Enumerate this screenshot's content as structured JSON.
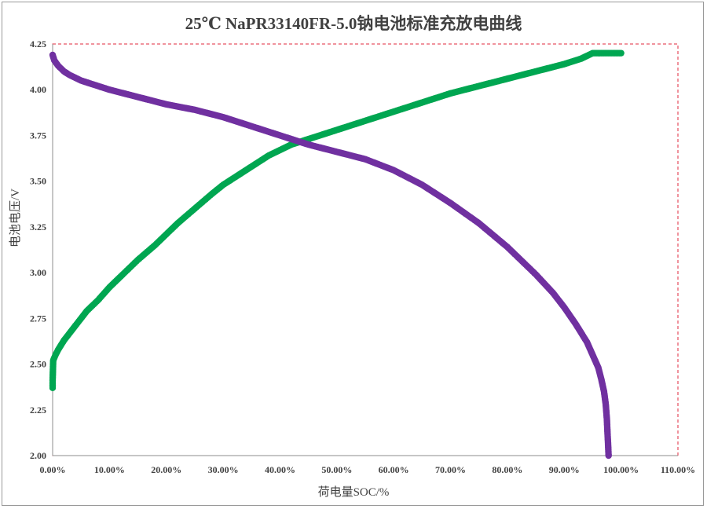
{
  "chart_data": {
    "type": "scatter",
    "title": "25℃ NaPR33140FR-5.0钠电池标准充放电曲线",
    "xlabel": "荷电量SOC/%",
    "ylabel": "电池电压/V",
    "xlim": [
      0,
      110
    ],
    "ylim": [
      2.0,
      4.25
    ],
    "x_ticks": [
      "0.00%",
      "10.00%",
      "20.00%",
      "30.00%",
      "40.00%",
      "50.00%",
      "60.00%",
      "70.00%",
      "80.00%",
      "90.00%",
      "100.00%",
      "110.00%"
    ],
    "y_ticks": [
      "2.00",
      "2.25",
      "2.50",
      "2.75",
      "3.00",
      "3.25",
      "3.50",
      "3.75",
      "4.00",
      "4.25"
    ],
    "grid": false,
    "legend": "none",
    "series": [
      {
        "color": "#00a651",
        "x": [
          0.0,
          0.0,
          0.1,
          0.5,
          1,
          2,
          3,
          4,
          5,
          6,
          7,
          8,
          10,
          12,
          15,
          18,
          20,
          22,
          25,
          28,
          30,
          33,
          35,
          38,
          40,
          42,
          45,
          48,
          50,
          55,
          60,
          65,
          70,
          75,
          80,
          85,
          90,
          93,
          95,
          97,
          100
        ],
        "y": [
          2.37,
          2.41,
          2.52,
          2.55,
          2.58,
          2.63,
          2.67,
          2.71,
          2.75,
          2.79,
          2.82,
          2.85,
          2.92,
          2.98,
          3.07,
          3.15,
          3.21,
          3.27,
          3.35,
          3.43,
          3.48,
          3.54,
          3.58,
          3.64,
          3.67,
          3.7,
          3.73,
          3.76,
          3.78,
          3.83,
          3.88,
          3.93,
          3.98,
          4.02,
          4.06,
          4.1,
          4.14,
          4.17,
          4.2,
          4.2,
          4.2
        ]
      },
      {
        "color": "#7030a0",
        "x": [
          0.0,
          0.3,
          1,
          2,
          3,
          5,
          8,
          10,
          15,
          20,
          25,
          30,
          35,
          40,
          45,
          50,
          55,
          60,
          65,
          70,
          75,
          80,
          85,
          88,
          90,
          92,
          94,
          95,
          96,
          96.5,
          97,
          97.3,
          97.5,
          97.6,
          97.7,
          97.8
        ],
        "y": [
          4.19,
          4.16,
          4.13,
          4.1,
          4.08,
          4.05,
          4.02,
          4.0,
          3.96,
          3.92,
          3.89,
          3.85,
          3.8,
          3.75,
          3.7,
          3.66,
          3.62,
          3.56,
          3.48,
          3.38,
          3.27,
          3.14,
          2.99,
          2.89,
          2.81,
          2.72,
          2.62,
          2.55,
          2.48,
          2.42,
          2.35,
          2.28,
          2.2,
          2.13,
          2.07,
          2.0
        ]
      }
    ]
  }
}
